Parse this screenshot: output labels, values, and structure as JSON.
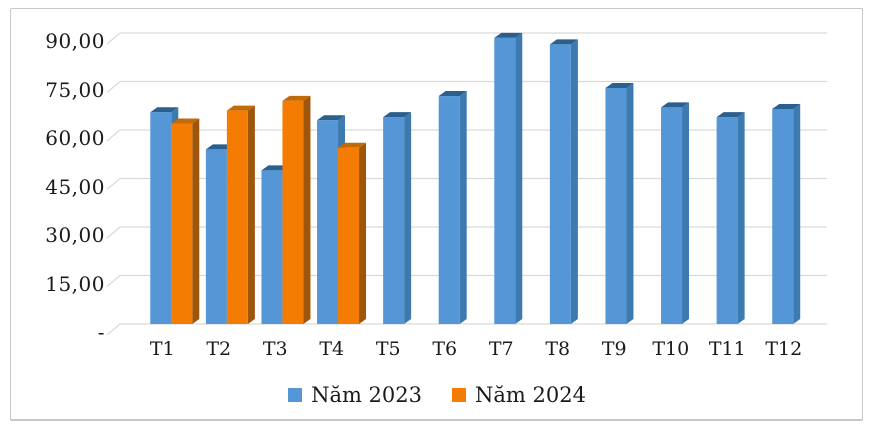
{
  "chart_data": {
    "type": "bar",
    "chart_style": "3d-clustered-column",
    "title": "",
    "categories": [
      "T1",
      "T2",
      "T3",
      "T4",
      "T5",
      "T6",
      "T7",
      "T8",
      "T9",
      "T10",
      "T11",
      "T12"
    ],
    "series": [
      {
        "name": "Năm 2023",
        "color": "#5596D6",
        "color_top": "#2B5F8E",
        "color_side": "#3D7AB0",
        "values": [
          65.5,
          54.0,
          47.5,
          63.0,
          64.0,
          70.5,
          88.5,
          86.5,
          73.0,
          67.0,
          64.0,
          66.5
        ]
      },
      {
        "name": "Năm 2024",
        "color": "#F47C02",
        "color_top": "#C26908",
        "color_side": "#9E560C",
        "values": [
          62.0,
          66.0,
          69.0,
          54.5
        ]
      }
    ],
    "y_axis": {
      "min": 0,
      "max": 90,
      "step": 15,
      "tick_labels": [
        "90,00",
        "75,00",
        "60,00",
        "45,00",
        "30,00",
        "15,00",
        "-"
      ]
    },
    "x_axis": {
      "label": ""
    },
    "legend": {
      "position": "bottom"
    },
    "grid": true,
    "colors": {
      "gridline": "#D9D9D9",
      "frame_border": "#C9C7C5",
      "background": "#FFFFFF",
      "text": "#1A1A1A"
    }
  }
}
